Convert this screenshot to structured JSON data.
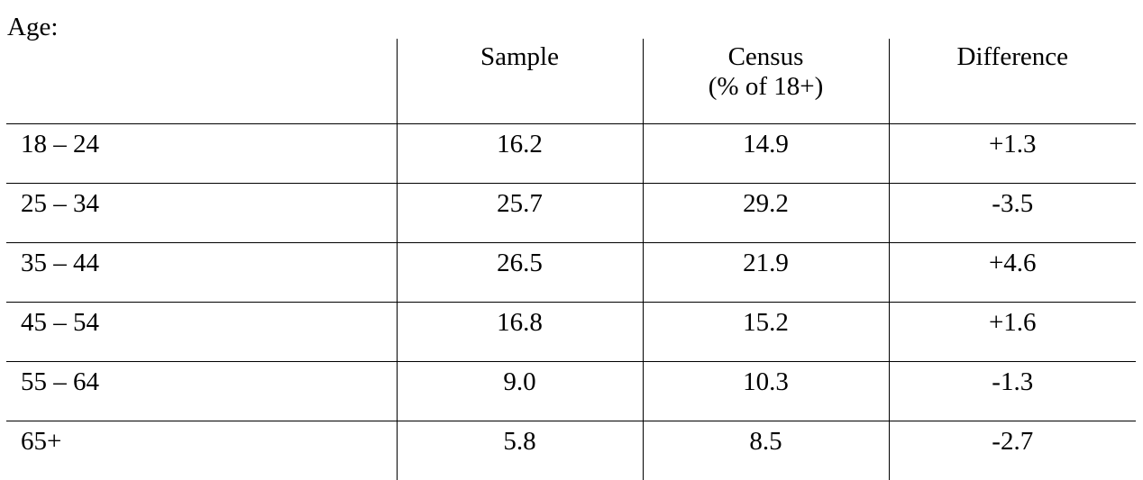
{
  "caption": "Age:",
  "columns": {
    "group": "",
    "sample": "Sample",
    "census": "Census",
    "census_sub": "(% of 18+)",
    "difference": "Difference"
  },
  "rows": [
    {
      "group": "18 – 24",
      "sample": "16.2",
      "census": "14.9",
      "difference": "+1.3"
    },
    {
      "group": "25 – 34",
      "sample": "25.7",
      "census": "29.2",
      "difference": "-3.5"
    },
    {
      "group": "35 – 44",
      "sample": "26.5",
      "census": "21.9",
      "difference": "+4.6"
    },
    {
      "group": "45 – 54",
      "sample": "16.8",
      "census": "15.2",
      "difference": "+1.6"
    },
    {
      "group": "55 – 64",
      "sample": "9.0",
      "census": "10.3",
      "difference": "-1.3"
    },
    {
      "group": "65+",
      "sample": "5.8",
      "census": "8.5",
      "difference": "-2.7"
    }
  ]
}
